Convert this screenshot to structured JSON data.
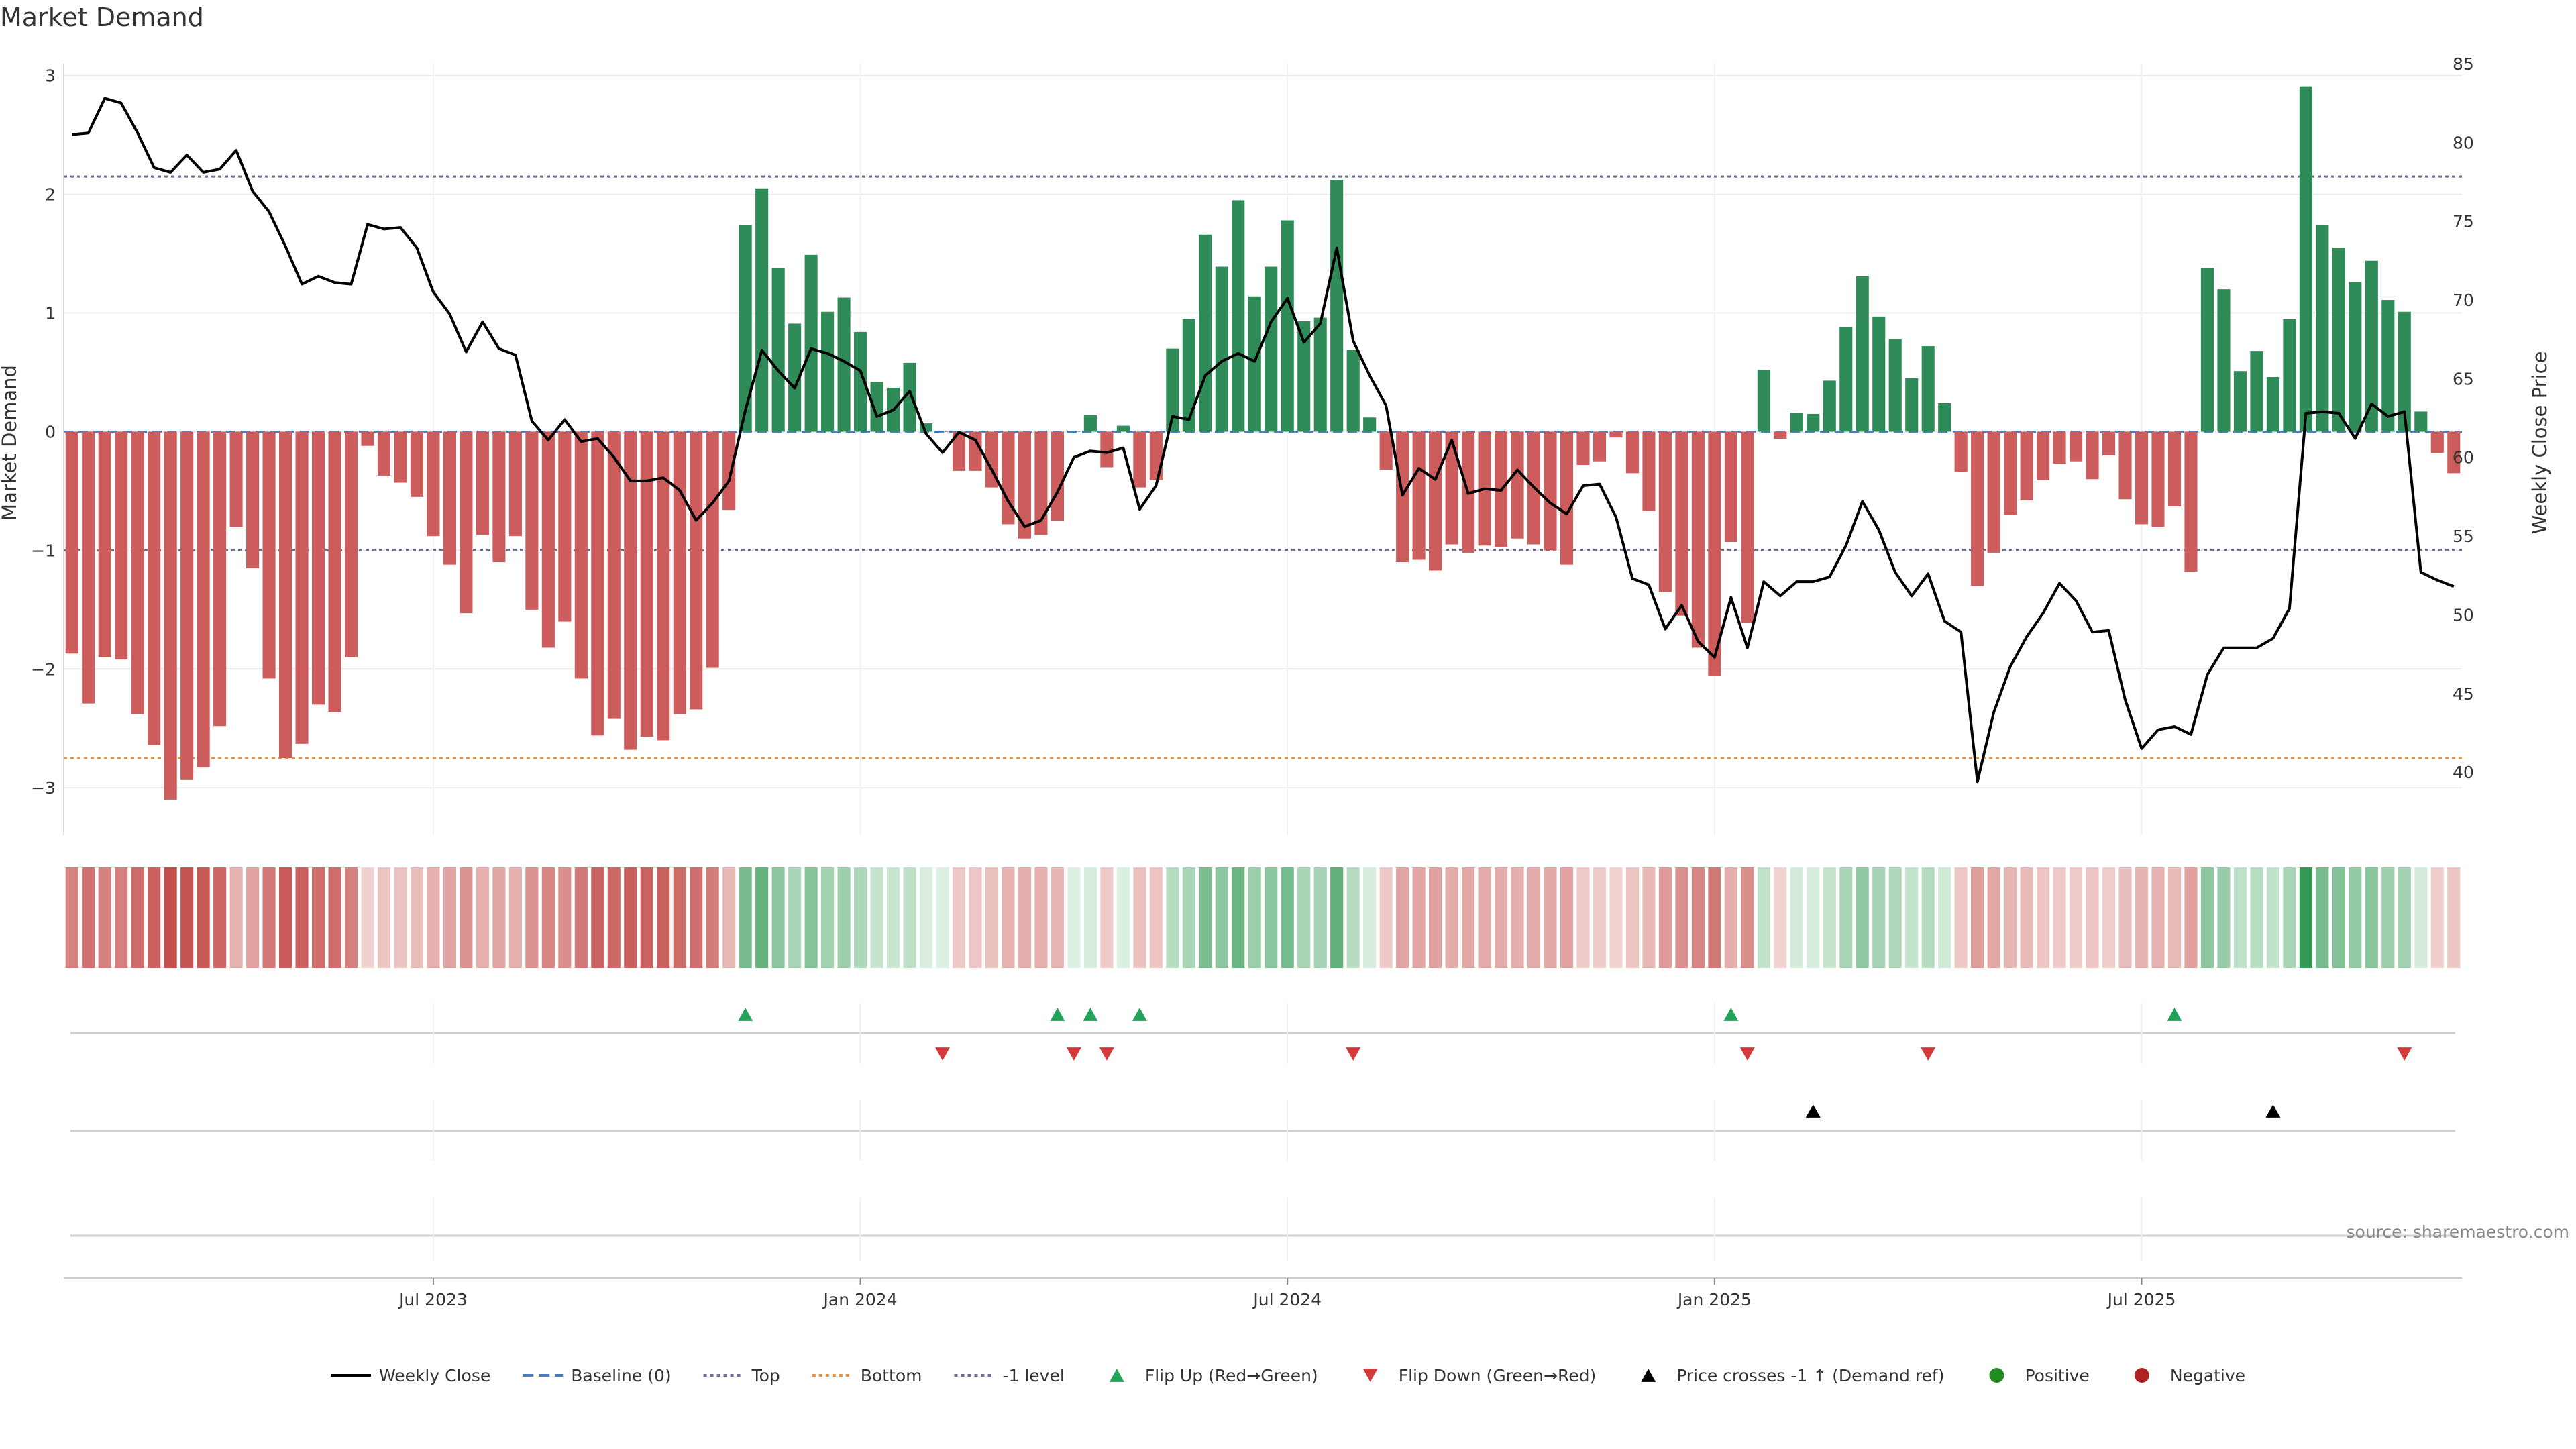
{
  "title": "Market Demand",
  "source": "source: sharemaestro.com",
  "colors": {
    "positive": "#2e8b57",
    "negative": "#cd5c5c",
    "flip_up": "#22a35a",
    "flip_down": "#d43a3a",
    "price_cross": "#000000",
    "top_line": "#6a6f99",
    "bottom_line": "#e8923c",
    "minus1_line": "#6a6f99",
    "baseline": "#4a7fc0",
    "price_line": "#000000"
  },
  "chart_data": {
    "type": "bar",
    "title": "Market Demand",
    "ylabel": "Market Demand",
    "y2label": "Weekly Close Price",
    "ylim": [
      -3.4,
      3.1
    ],
    "y2lim": [
      36,
      85
    ],
    "yticks": [
      "3",
      "2",
      "1",
      "0",
      "−1",
      "−2",
      "−3"
    ],
    "y2ticks": [
      "85",
      "80",
      "75",
      "70",
      "65",
      "60",
      "55",
      "50",
      "45",
      "40"
    ],
    "xtick_labels": [
      "Jul 2023",
      "Jan 2024",
      "Jul 2024",
      "Jan 2025",
      "Jul 2025"
    ],
    "xtick_index": [
      22,
      48,
      74,
      100,
      126
    ],
    "reference_lines": {
      "top": 2.15,
      "bottom": -2.75,
      "minus1": -1.0,
      "baseline": 0
    },
    "demand": [
      -1.87,
      -2.29,
      -1.9,
      -1.92,
      -2.38,
      -2.64,
      -3.1,
      -2.93,
      -2.83,
      -2.48,
      -0.8,
      -1.15,
      -2.08,
      -2.75,
      -2.63,
      -2.3,
      -2.36,
      -1.9,
      -0.12,
      -0.37,
      -0.43,
      -0.55,
      -0.88,
      -1.12,
      -1.53,
      -0.87,
      -1.1,
      -0.88,
      -1.5,
      -1.82,
      -1.6,
      -2.08,
      -2.56,
      -2.42,
      -2.68,
      -2.57,
      -2.6,
      -2.38,
      -2.34,
      -1.99,
      -0.66,
      1.74,
      2.05,
      1.38,
      0.91,
      1.49,
      1.01,
      1.13,
      0.84,
      0.42,
      0.37,
      0.58,
      0.07,
      0.0,
      -0.33,
      -0.33,
      -0.47,
      -0.78,
      -0.9,
      -0.87,
      -0.75,
      0.0,
      0.14,
      -0.3,
      0.05,
      -0.47,
      -0.41,
      0.7,
      0.95,
      1.66,
      1.39,
      1.95,
      1.14,
      1.39,
      1.78,
      0.93,
      0.96,
      2.12,
      0.69,
      0.12,
      -0.32,
      -1.1,
      -1.08,
      -1.17,
      -0.95,
      -1.02,
      -0.96,
      -0.97,
      -0.9,
      -0.95,
      -1.0,
      -1.12,
      -0.28,
      -0.25,
      -0.05,
      -0.35,
      -0.67,
      -1.35,
      -1.55,
      -1.82,
      -2.06,
      -0.93,
      -1.61,
      0.52,
      -0.06,
      0.16,
      0.15,
      0.43,
      0.88,
      1.31,
      0.97,
      0.78,
      0.45,
      0.72,
      0.24,
      -0.34,
      -1.3,
      -1.02,
      -0.7,
      -0.58,
      -0.41,
      -0.27,
      -0.25,
      -0.4,
      -0.2,
      -0.57,
      -0.78,
      -0.8,
      -0.63,
      -1.18,
      1.38,
      1.2,
      0.51,
      0.68,
      0.46,
      0.95,
      2.91,
      1.74,
      1.55,
      1.26,
      1.44,
      1.11,
      1.01,
      0.17,
      -0.18,
      -0.35
    ],
    "price": [
      80.5,
      80.6,
      82.8,
      82.5,
      80.6,
      78.4,
      78.1,
      79.2,
      78.1,
      78.3,
      79.5,
      76.9,
      75.6,
      73.4,
      71.0,
      71.5,
      71.1,
      71.0,
      74.8,
      74.5,
      74.6,
      73.3,
      70.5,
      69.1,
      66.7,
      68.6,
      66.9,
      66.5,
      62.3,
      61.1,
      62.4,
      61.0,
      61.2,
      60.0,
      58.5,
      58.5,
      58.7,
      57.9,
      56.0,
      57.1,
      58.5,
      63.0,
      66.8,
      65.5,
      64.4,
      66.9,
      66.6,
      66.1,
      65.5,
      62.6,
      63.0,
      64.2,
      61.5,
      60.3,
      61.6,
      61.1,
      59.2,
      57.2,
      55.6,
      56.0,
      57.8,
      60.0,
      60.4,
      60.3,
      60.6,
      56.7,
      58.2,
      62.6,
      62.4,
      65.2,
      66.1,
      66.6,
      66.1,
      68.6,
      70.1,
      67.3,
      68.5,
      73.3,
      67.4,
      65.2,
      63.3,
      57.6,
      59.3,
      58.6,
      61.1,
      57.7,
      58.0,
      57.9,
      59.2,
      58.1,
      57.1,
      56.4,
      58.2,
      58.3,
      56.2,
      52.3,
      51.9,
      49.1,
      50.6,
      48.3,
      47.3,
      51.1,
      47.9,
      52.1,
      51.2,
      52.1,
      52.1,
      52.4,
      54.4,
      57.2,
      55.4,
      52.7,
      51.2,
      52.6,
      49.6,
      48.9,
      39.4,
      43.8,
      46.7,
      48.6,
      50.1,
      52.0,
      50.9,
      48.9,
      49.0,
      44.6,
      41.5,
      42.7,
      42.9,
      42.4,
      46.2,
      47.9,
      47.9,
      47.9,
      48.5,
      50.4,
      62.8,
      62.9,
      62.8,
      61.2,
      63.4,
      62.6,
      62.9,
      52.7,
      52.2,
      51.8
    ],
    "flip_up_index": [
      41,
      60,
      62,
      65,
      101,
      128
    ],
    "flip_down_index": [
      53,
      61,
      63,
      78,
      102,
      113,
      142
    ],
    "price_cross_index": [
      106,
      134
    ]
  },
  "legend": {
    "items": [
      {
        "label": "Weekly Close",
        "kind": "line",
        "color": "#000000"
      },
      {
        "label": "Baseline (0)",
        "kind": "dash",
        "color": "#4a7fc0"
      },
      {
        "label": "Top",
        "kind": "dot",
        "color": "#6a6f99"
      },
      {
        "label": "Bottom",
        "kind": "dot",
        "color": "#e8923c"
      },
      {
        "label": "-1 level",
        "kind": "dot",
        "color": "#6a6f99"
      },
      {
        "label": "Flip Up (Red→Green)",
        "kind": "tri-up",
        "color": "#22a35a"
      },
      {
        "label": "Flip Down (Green→Red)",
        "kind": "tri-down",
        "color": "#d43a3a"
      },
      {
        "label": "Price crosses -1 ↑ (Demand ref)",
        "kind": "tri-up",
        "color": "#000000"
      },
      {
        "label": "Positive",
        "kind": "circle",
        "color": "#228b22"
      },
      {
        "label": "Negative",
        "kind": "circle",
        "color": "#b22222"
      }
    ]
  }
}
